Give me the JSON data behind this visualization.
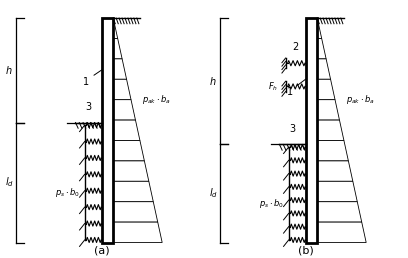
{
  "bg_color": "#ffffff",
  "line_color": "#000000",
  "fig_width": 4.08,
  "fig_height": 2.58,
  "dpi": 100,
  "label_a": "(a)",
  "label_b": "(b)"
}
